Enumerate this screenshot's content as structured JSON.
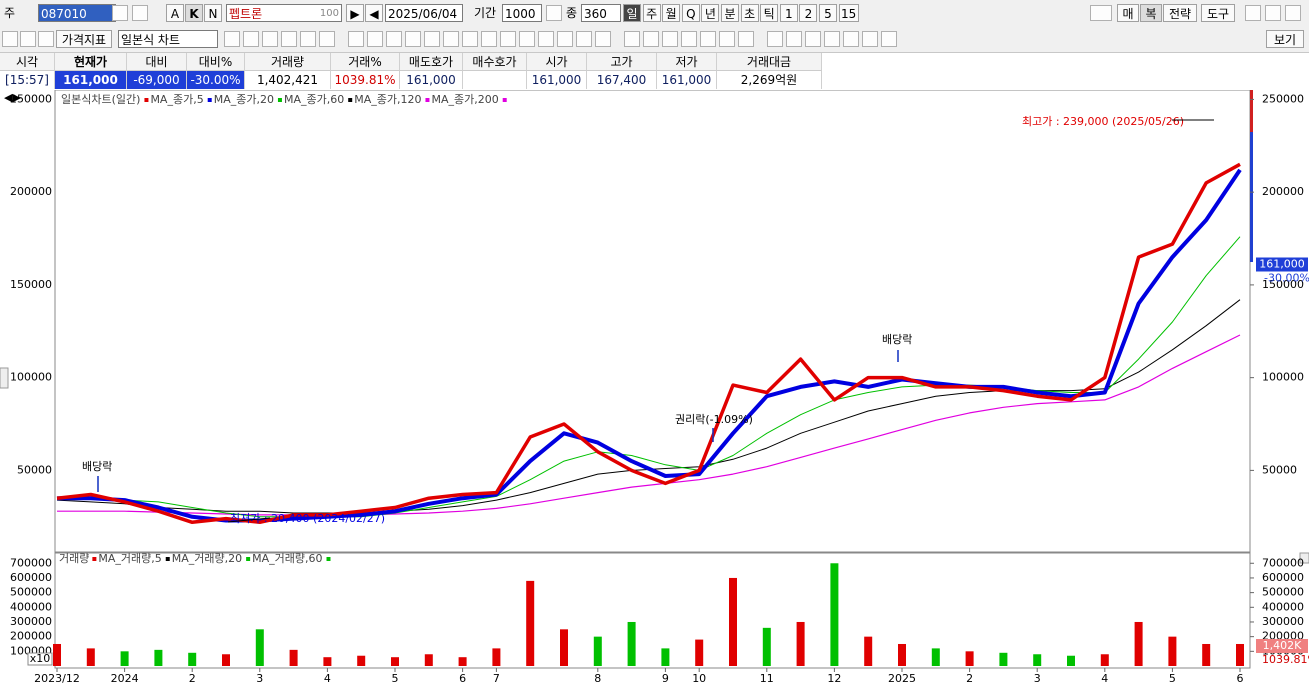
{
  "toolbar": {
    "market": "주",
    "code": "087010",
    "name": "펩트론",
    "name_suffix": "100",
    "date": "2025/06/04",
    "period_label": "기간",
    "period": "1000",
    "count_label": "종",
    "count": "360",
    "modes": [
      "A",
      "K",
      "N"
    ],
    "intervals": [
      "일",
      "주",
      "월",
      "Q",
      "년",
      "분",
      "초",
      "틱",
      "1",
      "2",
      "5",
      "15"
    ],
    "right_buttons": [
      "매",
      "복",
      "전략",
      "도구"
    ],
    "indicator_button": "가격지표",
    "chart_style": "일본식 차트",
    "view_button": "보기"
  },
  "quote_table": {
    "headers": [
      "시각",
      "현재가",
      "대비",
      "대비%",
      "거래량",
      "거래%",
      "매도호가",
      "매수호가",
      "시가",
      "고가",
      "저가",
      "거래대금"
    ],
    "values": [
      "[15:57]",
      "161,000",
      "-69,000",
      "-30.00%",
      "1,402,421",
      "1039.81%",
      "161,000",
      null,
      "161,000",
      "167,400",
      "161,000",
      "2,269억원"
    ]
  },
  "chart_data": [
    {
      "type": "line",
      "title": "일본식차트(일간)",
      "categories": [
        "2023/12",
        null,
        "2024",
        null,
        "2",
        null,
        "3",
        null,
        "4",
        null,
        "5",
        null,
        "6",
        "7",
        null,
        null,
        "8",
        null,
        "9",
        "10",
        null,
        "11",
        null,
        "12",
        null,
        "2025",
        null,
        "2",
        null,
        "3",
        null,
        "4",
        null,
        "5",
        null,
        "6"
      ],
      "series": [
        {
          "name": "MA_종가,5",
          "color": "#e00000",
          "values": [
            35000,
            37000,
            33000,
            28000,
            22000,
            24000,
            22000,
            26000,
            26000,
            28000,
            30000,
            35000,
            37000,
            38000,
            68000,
            75000,
            60000,
            50000,
            43000,
            50000,
            96000,
            92000,
            110000,
            88000,
            100000,
            100000,
            95000,
            95000,
            93000,
            90000,
            88000,
            100000,
            165000,
            172000,
            205000,
            215000
          ]
        },
        {
          "name": "MA_종가,20",
          "color": "#0000e0",
          "values": [
            35000,
            35000,
            34000,
            30000,
            25000,
            23000,
            23000,
            24000,
            25000,
            26000,
            28000,
            32000,
            35000,
            37000,
            55000,
            70000,
            65000,
            55000,
            47000,
            48000,
            70000,
            90000,
            95000,
            98000,
            95000,
            99000,
            97000,
            95000,
            95000,
            92000,
            90000,
            92000,
            140000,
            165000,
            185000,
            212000
          ]
        },
        {
          "name": "MA_종가,60",
          "color": "#00c000",
          "values": [
            35000,
            35000,
            34000,
            33000,
            30000,
            27000,
            25000,
            25000,
            25000,
            25000,
            27000,
            30000,
            33000,
            36000,
            45000,
            55000,
            60000,
            58000,
            53000,
            50000,
            58000,
            70000,
            80000,
            88000,
            92000,
            95000,
            96000,
            96000,
            95000,
            93000,
            92000,
            92000,
            110000,
            130000,
            155000,
            176000
          ]
        },
        {
          "name": "MA_종가,120",
          "color": "#000000",
          "values": [
            34000,
            33000,
            32000,
            30000,
            29000,
            28000,
            28000,
            27000,
            27000,
            27000,
            28000,
            29000,
            31000,
            34000,
            38000,
            43000,
            48000,
            50000,
            51000,
            52000,
            56000,
            62000,
            70000,
            76000,
            82000,
            86000,
            90000,
            92000,
            93000,
            93000,
            93000,
            94000,
            103000,
            115000,
            128000,
            142000
          ]
        },
        {
          "name": "MA_종가,200",
          "color": "#e000e0",
          "values": [
            28000,
            28000,
            28000,
            27500,
            27000,
            26500,
            26000,
            26000,
            26000,
            26000,
            26500,
            27000,
            28000,
            29500,
            32000,
            35000,
            38000,
            41000,
            43000,
            45000,
            48000,
            52000,
            57000,
            62000,
            67000,
            72000,
            77000,
            81000,
            84000,
            86000,
            87000,
            88000,
            95000,
            105000,
            114000,
            123000
          ]
        }
      ],
      "ylim": [
        6000,
        254000
      ],
      "yticks": [
        50000,
        100000,
        150000,
        200000,
        250000
      ],
      "annotations": [
        {
          "text": "최고가 : 239,000 (2025/05/26)",
          "color": "#e00000"
        },
        {
          "text": "최저가 : 20,400 (2024/02/27)",
          "color": "#0000e0"
        },
        {
          "text": "배당락",
          "color": "#000000"
        },
        {
          "text": "배당락",
          "color": "#000000"
        },
        {
          "text": "권리락(-1.09%)",
          "color": "#000000"
        }
      ],
      "current_price": {
        "value": 161000,
        "label": "161,000"
      },
      "change_label": "-30.00%"
    },
    {
      "type": "bar",
      "title": "거래량",
      "values": [
        150000,
        120000,
        100000,
        110000,
        90000,
        80000,
        250000,
        110000,
        60000,
        70000,
        60000,
        80000,
        60000,
        120000,
        580000,
        250000,
        200000,
        300000,
        120000,
        180000,
        600000,
        260000,
        300000,
        700000,
        200000,
        150000,
        120000,
        100000,
        90000,
        80000,
        70000,
        80000,
        300000,
        200000,
        150000,
        150000
      ],
      "up_color": "#e00000",
      "down_color": "#00c000",
      "ylim": [
        0,
        770000
      ],
      "yticks": [
        100000,
        200000,
        300000,
        400000,
        500000,
        600000,
        700000
      ],
      "ma_legend": [
        {
          "name": "MA_거래량,5",
          "color": "#e00000"
        },
        {
          "name": "MA_거래량,20",
          "color": "#000000"
        },
        {
          "name": "MA_거래량,60",
          "color": "#00c000"
        }
      ],
      "volume_label": "1,402K",
      "ratio_label": "1039.81%",
      "scale_label": "x10"
    }
  ]
}
